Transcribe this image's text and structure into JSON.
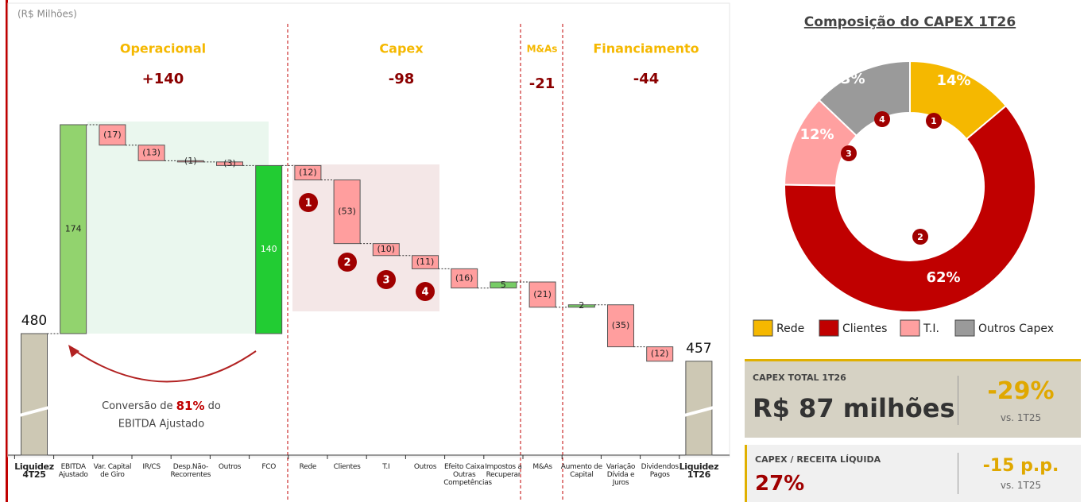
{
  "chart_data": [
    {
      "type": "waterfall",
      "unit_label": "(R$ Milhões)",
      "categories": [
        "Liquidez 4T25",
        "EBITDA Ajustado",
        "Var. Capital de Giro",
        "IR/CS",
        "Desp.Não-Recorrentes",
        "Outros",
        "FCO",
        "Rede",
        "Clientes",
        "T.I",
        "Outros",
        "Efeito Caixa Outras Competências",
        "Impostos a Recuperar",
        "M&As",
        "Aumento de Capital",
        "Variação Dívida e Juros",
        "Dividendos Pagos",
        "Liquidez 1T26"
      ],
      "values": [
        480,
        174,
        -17,
        -13,
        -1,
        -3,
        140,
        -12,
        -53,
        -10,
        -11,
        -16,
        5,
        -21,
        2,
        -35,
        -12,
        457
      ],
      "value_labels": [
        "480",
        "174",
        "(17)",
        "(13)",
        "(1)",
        "(3)",
        "140",
        "(12)",
        "(53)",
        "(10)",
        "(11)",
        "(16)",
        "5",
        "(21)",
        "2",
        "(35)",
        "(12)",
        "457"
      ],
      "measure": [
        "absolute",
        "relative",
        "relative",
        "relative",
        "relative",
        "relative",
        "total",
        "relative",
        "relative",
        "relative",
        "relative",
        "relative",
        "relative",
        "relative",
        "relative",
        "relative",
        "relative",
        "absolute"
      ],
      "colors": [
        "#cdc8b4",
        "#92d36e",
        "#ff9e9e",
        "#ff9e9e",
        "#ff9e9e",
        "#ff9e9e",
        "#22cc33",
        "#ff9e9e",
        "#ff9e9e",
        "#ff9e9e",
        "#ff9e9e",
        "#ff9e9e",
        "#77cc66",
        "#ff9e9e",
        "#77cc66",
        "#ff9e9e",
        "#ff9e9e",
        "#cdc8b4"
      ],
      "sections": [
        {
          "name": "Operacional",
          "value": 140,
          "value_label": "+140"
        },
        {
          "name": "Capex",
          "value": -98,
          "value_label": "-98"
        },
        {
          "name": "M&As",
          "value": -21,
          "value_label": "-21"
        },
        {
          "name": "Financiamento",
          "value": -44,
          "value_label": "-44"
        }
      ],
      "markers": [
        "1",
        "2",
        "3",
        "4"
      ],
      "annotation": {
        "before": "Conversão de",
        "highlight": "81%",
        "after": "do",
        "line2": "EBITDA Ajustado"
      }
    },
    {
      "type": "pie",
      "title": "Composição do CAPEX 1T26",
      "categories": [
        "Rede",
        "Clientes",
        "T.I.",
        "Outros Capex"
      ],
      "values": [
        14,
        62,
        12,
        13
      ],
      "value_labels": [
        "14%",
        "62%",
        "12%",
        "13%"
      ],
      "colors": [
        "#f5b800",
        "#c00000",
        "#ffa0a0",
        "#9a9a9a"
      ],
      "markers": [
        "1",
        "2",
        "3",
        "4"
      ],
      "legend": "bottom"
    }
  ],
  "kpis": [
    {
      "label": "CAPEX TOTAL 1T26",
      "value": "R$ 87 milhões",
      "change": "-29%",
      "compare": "vs. 1T25"
    },
    {
      "label": "CAPEX / RECEITA LÍQUIDA",
      "value": "27%",
      "change": "-15 p.p.",
      "compare": "vs. 1T25"
    }
  ]
}
